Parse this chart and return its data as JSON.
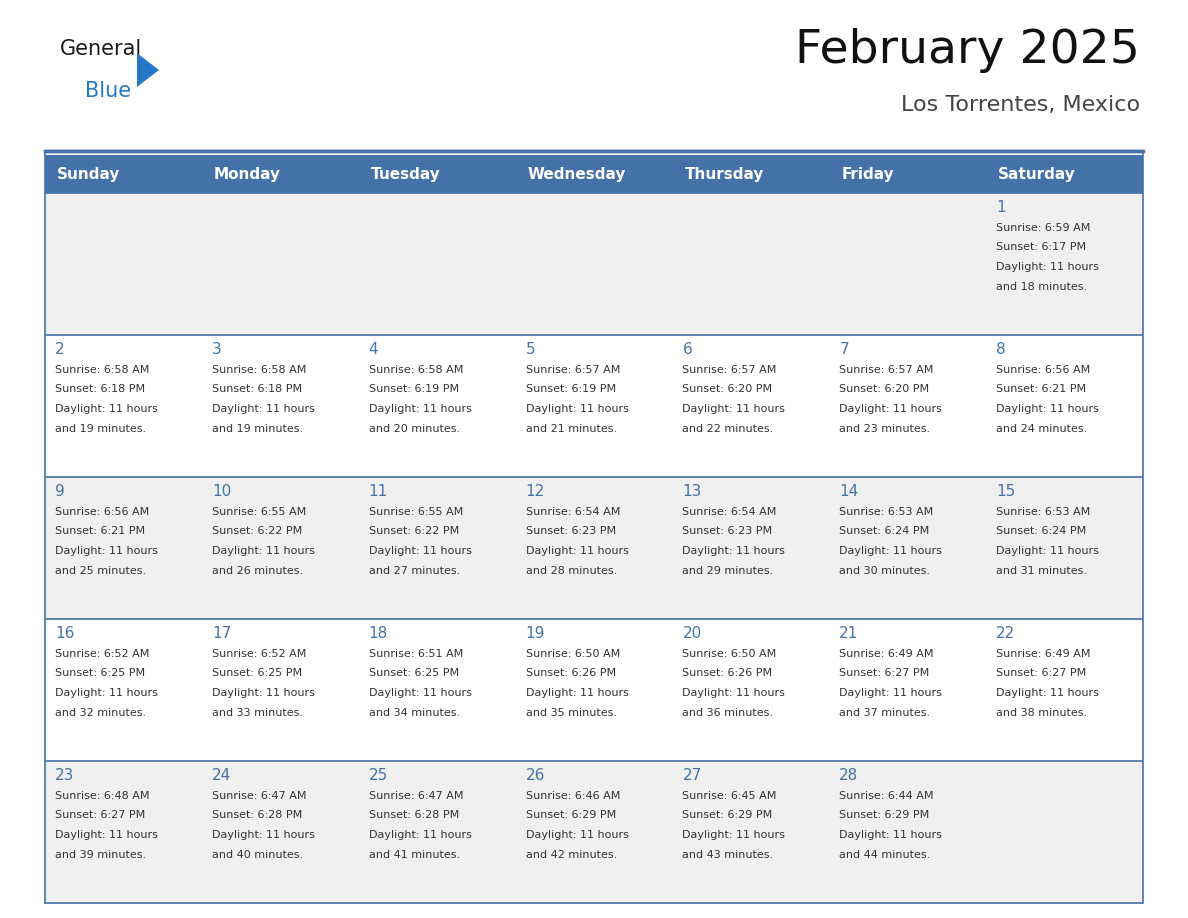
{
  "title": "February 2025",
  "subtitle": "Los Torrentes, Mexico",
  "header_bg": "#4472a8",
  "header_text": "#ffffff",
  "row_bg_odd": "#f0f0f0",
  "row_bg_even": "#ffffff",
  "day_names": [
    "Sunday",
    "Monday",
    "Tuesday",
    "Wednesday",
    "Thursday",
    "Friday",
    "Saturday"
  ],
  "days": [
    {
      "day": 1,
      "col": 6,
      "row": 0,
      "sunrise": "6:59 AM",
      "sunset": "6:17 PM",
      "daylight": "11 hours and 18 minutes."
    },
    {
      "day": 2,
      "col": 0,
      "row": 1,
      "sunrise": "6:58 AM",
      "sunset": "6:18 PM",
      "daylight": "11 hours and 19 minutes."
    },
    {
      "day": 3,
      "col": 1,
      "row": 1,
      "sunrise": "6:58 AM",
      "sunset": "6:18 PM",
      "daylight": "11 hours and 19 minutes."
    },
    {
      "day": 4,
      "col": 2,
      "row": 1,
      "sunrise": "6:58 AM",
      "sunset": "6:19 PM",
      "daylight": "11 hours and 20 minutes."
    },
    {
      "day": 5,
      "col": 3,
      "row": 1,
      "sunrise": "6:57 AM",
      "sunset": "6:19 PM",
      "daylight": "11 hours and 21 minutes."
    },
    {
      "day": 6,
      "col": 4,
      "row": 1,
      "sunrise": "6:57 AM",
      "sunset": "6:20 PM",
      "daylight": "11 hours and 22 minutes."
    },
    {
      "day": 7,
      "col": 5,
      "row": 1,
      "sunrise": "6:57 AM",
      "sunset": "6:20 PM",
      "daylight": "11 hours and 23 minutes."
    },
    {
      "day": 8,
      "col": 6,
      "row": 1,
      "sunrise": "6:56 AM",
      "sunset": "6:21 PM",
      "daylight": "11 hours and 24 minutes."
    },
    {
      "day": 9,
      "col": 0,
      "row": 2,
      "sunrise": "6:56 AM",
      "sunset": "6:21 PM",
      "daylight": "11 hours and 25 minutes."
    },
    {
      "day": 10,
      "col": 1,
      "row": 2,
      "sunrise": "6:55 AM",
      "sunset": "6:22 PM",
      "daylight": "11 hours and 26 minutes."
    },
    {
      "day": 11,
      "col": 2,
      "row": 2,
      "sunrise": "6:55 AM",
      "sunset": "6:22 PM",
      "daylight": "11 hours and 27 minutes."
    },
    {
      "day": 12,
      "col": 3,
      "row": 2,
      "sunrise": "6:54 AM",
      "sunset": "6:23 PM",
      "daylight": "11 hours and 28 minutes."
    },
    {
      "day": 13,
      "col": 4,
      "row": 2,
      "sunrise": "6:54 AM",
      "sunset": "6:23 PM",
      "daylight": "11 hours and 29 minutes."
    },
    {
      "day": 14,
      "col": 5,
      "row": 2,
      "sunrise": "6:53 AM",
      "sunset": "6:24 PM",
      "daylight": "11 hours and 30 minutes."
    },
    {
      "day": 15,
      "col": 6,
      "row": 2,
      "sunrise": "6:53 AM",
      "sunset": "6:24 PM",
      "daylight": "11 hours and 31 minutes."
    },
    {
      "day": 16,
      "col": 0,
      "row": 3,
      "sunrise": "6:52 AM",
      "sunset": "6:25 PM",
      "daylight": "11 hours and 32 minutes."
    },
    {
      "day": 17,
      "col": 1,
      "row": 3,
      "sunrise": "6:52 AM",
      "sunset": "6:25 PM",
      "daylight": "11 hours and 33 minutes."
    },
    {
      "day": 18,
      "col": 2,
      "row": 3,
      "sunrise": "6:51 AM",
      "sunset": "6:25 PM",
      "daylight": "11 hours and 34 minutes."
    },
    {
      "day": 19,
      "col": 3,
      "row": 3,
      "sunrise": "6:50 AM",
      "sunset": "6:26 PM",
      "daylight": "11 hours and 35 minutes."
    },
    {
      "day": 20,
      "col": 4,
      "row": 3,
      "sunrise": "6:50 AM",
      "sunset": "6:26 PM",
      "daylight": "11 hours and 36 minutes."
    },
    {
      "day": 21,
      "col": 5,
      "row": 3,
      "sunrise": "6:49 AM",
      "sunset": "6:27 PM",
      "daylight": "11 hours and 37 minutes."
    },
    {
      "day": 22,
      "col": 6,
      "row": 3,
      "sunrise": "6:49 AM",
      "sunset": "6:27 PM",
      "daylight": "11 hours and 38 minutes."
    },
    {
      "day": 23,
      "col": 0,
      "row": 4,
      "sunrise": "6:48 AM",
      "sunset": "6:27 PM",
      "daylight": "11 hours and 39 minutes."
    },
    {
      "day": 24,
      "col": 1,
      "row": 4,
      "sunrise": "6:47 AM",
      "sunset": "6:28 PM",
      "daylight": "11 hours and 40 minutes."
    },
    {
      "day": 25,
      "col": 2,
      "row": 4,
      "sunrise": "6:47 AM",
      "sunset": "6:28 PM",
      "daylight": "11 hours and 41 minutes."
    },
    {
      "day": 26,
      "col": 3,
      "row": 4,
      "sunrise": "6:46 AM",
      "sunset": "6:29 PM",
      "daylight": "11 hours and 42 minutes."
    },
    {
      "day": 27,
      "col": 4,
      "row": 4,
      "sunrise": "6:45 AM",
      "sunset": "6:29 PM",
      "daylight": "11 hours and 43 minutes."
    },
    {
      "day": 28,
      "col": 5,
      "row": 4,
      "sunrise": "6:44 AM",
      "sunset": "6:29 PM",
      "daylight": "11 hours and 44 minutes."
    }
  ],
  "num_rows": 5,
  "num_cols": 7,
  "cell_text_color": "#333333",
  "day_num_color": "#4472a8",
  "separator_color": "#4472a8",
  "logo_general_color": "#1a1a1a",
  "logo_blue_color": "#2577c8",
  "title_color": "#111111",
  "subtitle_color": "#444444"
}
